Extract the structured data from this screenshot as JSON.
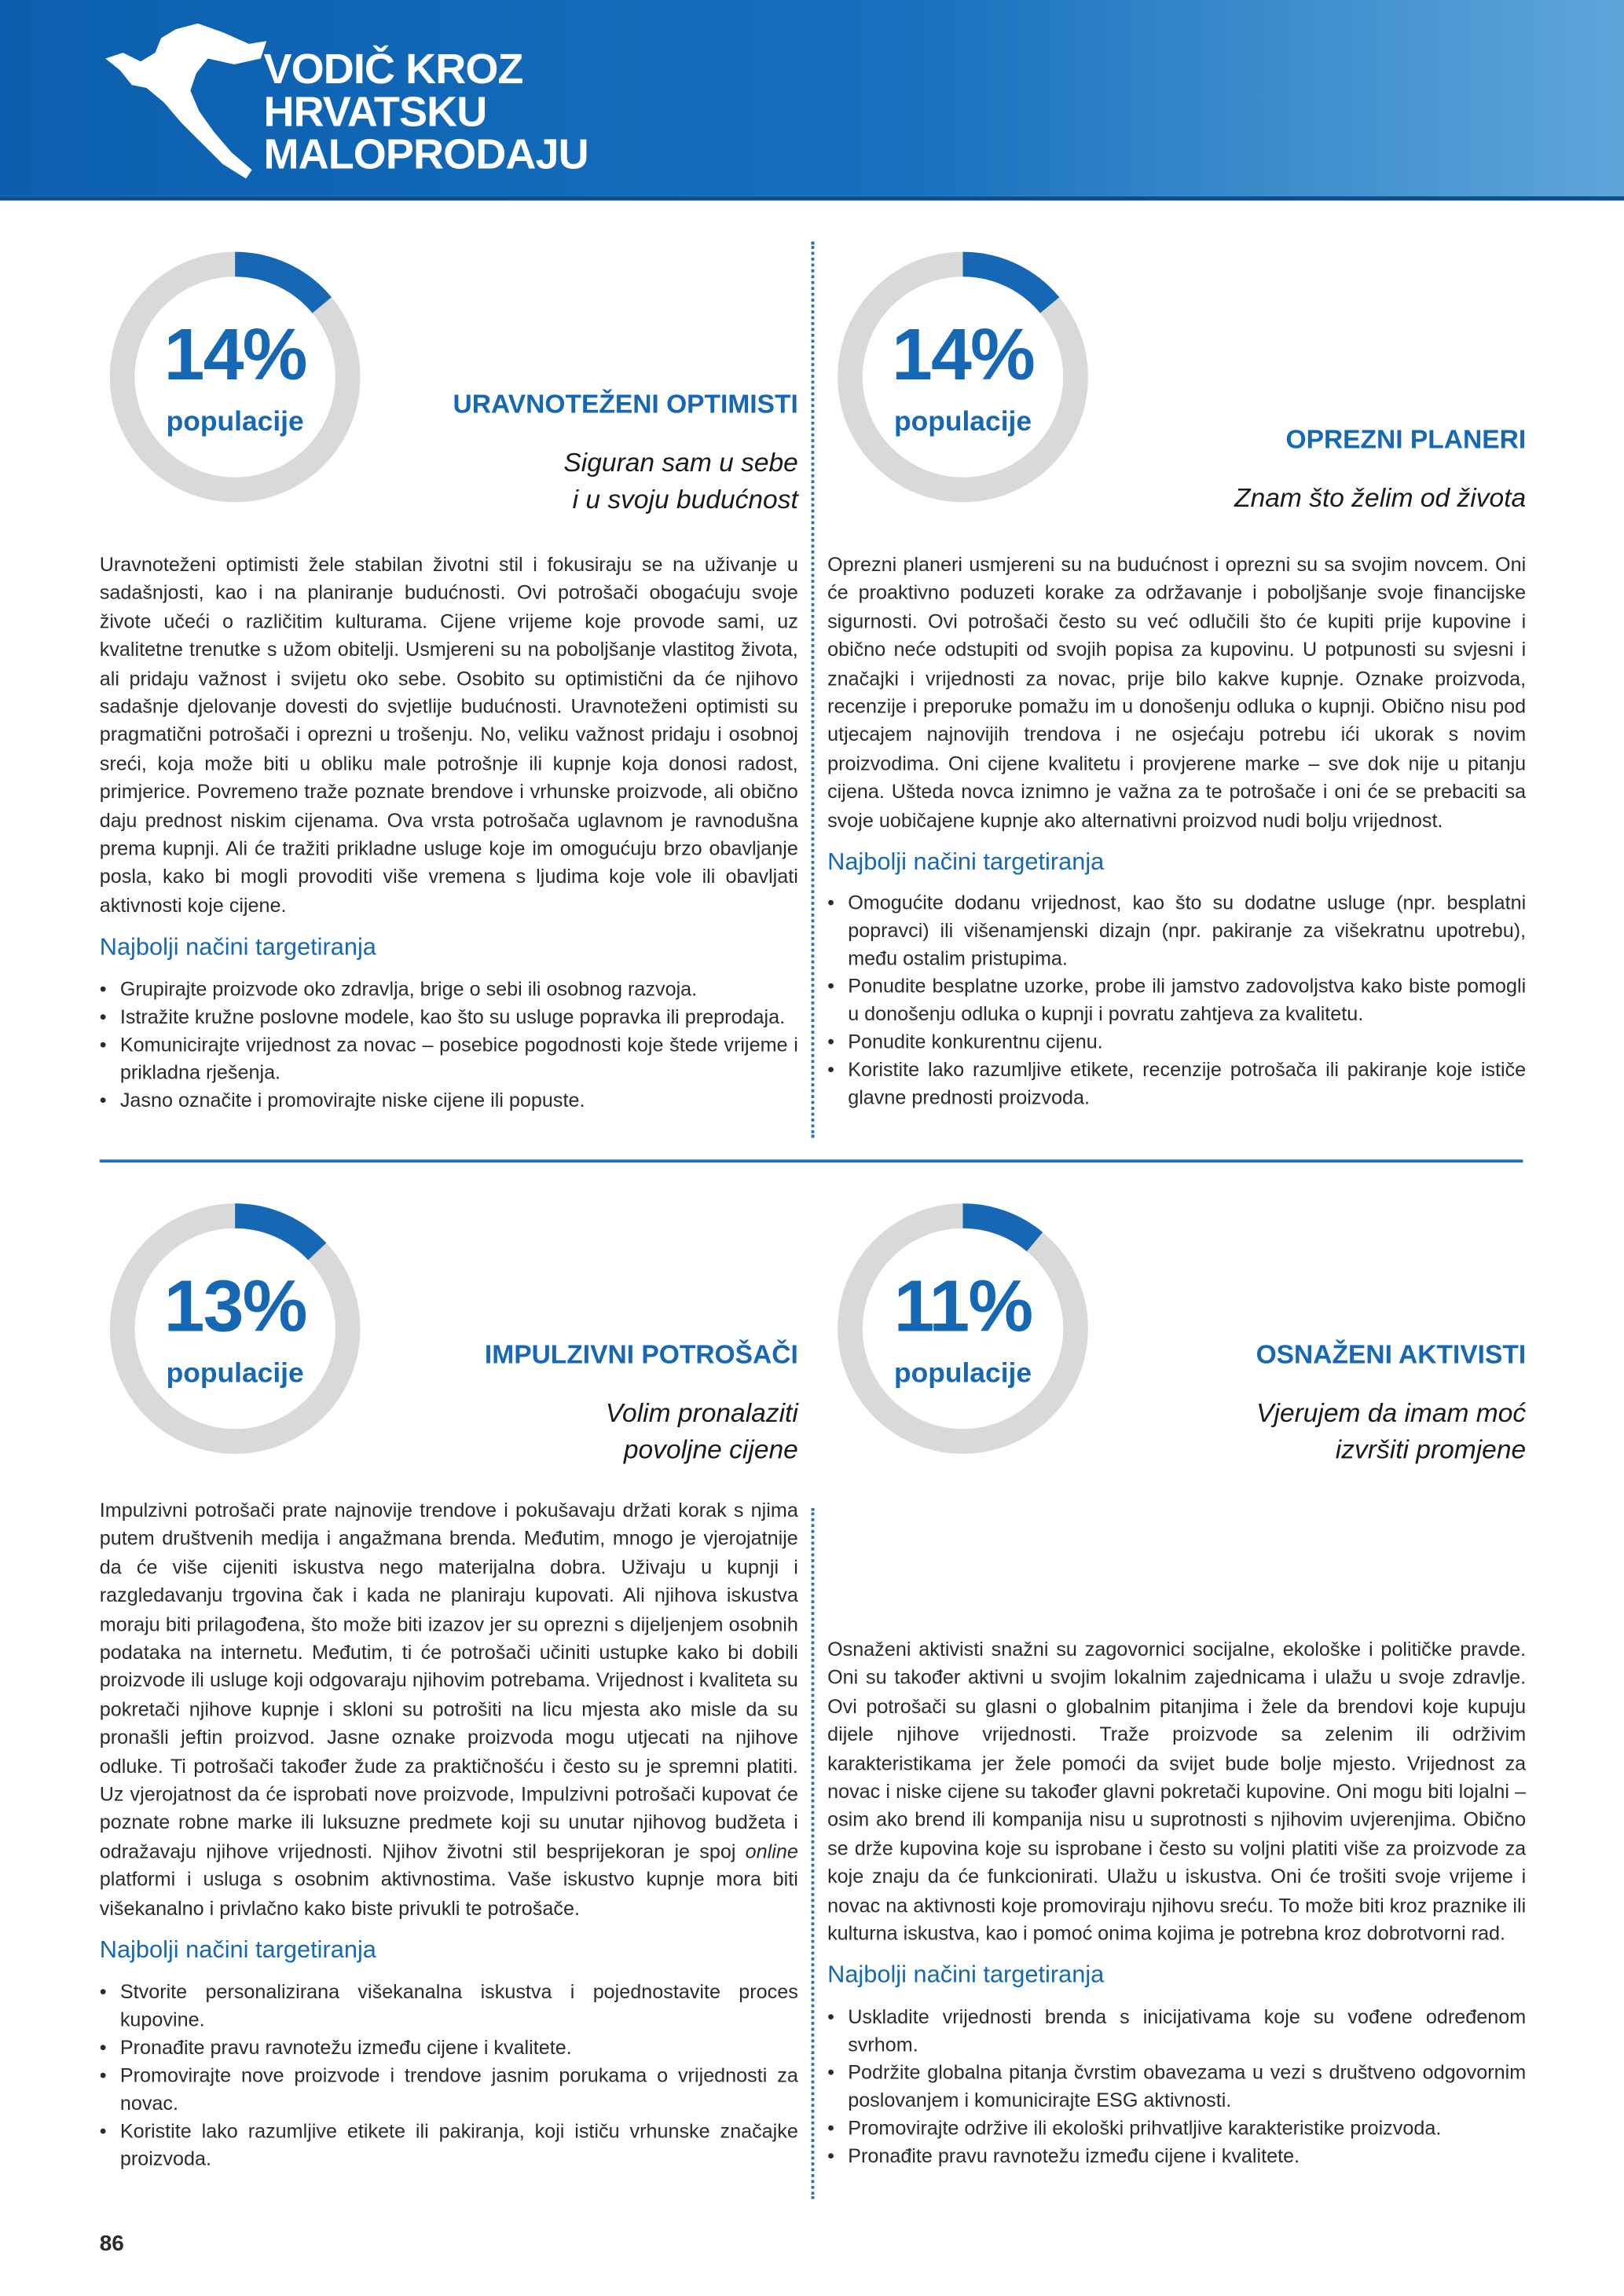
{
  "header": {
    "title_lines": [
      "VODIČ KROZ",
      "HRVATSKU",
      "MALOPRODAJU"
    ]
  },
  "sections": [
    {
      "share": {
        "value": 14,
        "label": "14%"
      },
      "share_caption": "populacije",
      "title": "URAVNOTEŽENI OPTIMISTI",
      "motto_lines": [
        "Siguran sam u sebe",
        "i u svoju budućnost"
      ],
      "body": [
        "Uravnoteženi optimisti žele stabilan životni stil i fokusiraju se na uživanje u sadašnjosti, kao i na planiranje budućnosti. Ovi potrošači obogaćuju svoje živote učeći o različitim kulturama. Cijene vrijeme koje provode sami, uz kvalitetne trenutke s užom obitelji. Usmjereni su na poboljšanje vlastitog života, ali pridaju važnost i svijetu oko sebe. Osobito su optimistični da će njihovo sadašnje djelovanje dovesti do svjetlije budućnosti. Uravnoteženi optimisti su pragmatični potrošači i oprezni u trošenju. No, veliku važnost pridaju i osobnoj sreći, koja može biti u obliku male potrošnje ili kupnje koja donosi radost, primjerice. Povremeno traže poznate brendove i vrhunske proizvode, ali obično daju prednost niskim cijenama. Ova vrsta potrošača uglavnom je ravnodušna prema kupnji. Ali će tražiti prikladne usluge koje im omogućuju brzo obavljanje posla, kako bi mogli provoditi više vremena s ljudima koje vole ili obavljati aktivnosti koje cijene."
      ],
      "tips_heading": "Najbolji načini targetiranja",
      "tips": [
        "Grupirajte proizvode oko zdravlja, brige o sebi ili osobnog razvoja.",
        "Istražite kružne poslovne modele, kao što su usluge popravka ili preprodaja.",
        "Komunicirajte vrijednost za novac – posebice pogodnosti koje štede vrijeme i prikladna rješenja.",
        "Jasno označite i promovirajte niske cijene ili popuste."
      ]
    },
    {
      "share": {
        "value": 14,
        "label": "14%"
      },
      "share_caption": "populacije",
      "title": "OPREZNI PLANERI",
      "motto_lines": [
        "Znam što želim od života"
      ],
      "body": [
        "Oprezni planeri usmjereni su na budućnost i oprezni su sa svojim novcem. Oni će proaktivno poduzeti korake za održavanje i poboljšanje svoje financijske sigurnosti. Ovi potrošači često su već odlučili što će kupiti prije kupovine i obično neće odstupiti od svojih popisa za kupovinu. U potpunosti su svjesni i značajki i vrijednosti za novac, prije bilo kakve kupnje. Oznake proizvoda, recenzije i preporuke pomažu im u donošenju odluka o kupnji. Obično nisu pod utjecajem najnovijih trendova i ne osjećaju potrebu ići ukorak s novim proizvodima. Oni cijene kvalitetu i provjerene marke – sve dok nije u pitanju cijena. Ušteda novca iznimno je važna za te potrošače i oni će se prebaciti sa svoje uobičajene kupnje ako alternativni proizvod nudi bolju vrijednost."
      ],
      "tips_heading": "Najbolji načini targetiranja",
      "tips": [
        "Omogućite dodanu vrijednost, kao što su dodatne usluge (npr. besplatni popravci) ili višenamjenski dizajn (npr. pakiranje za višekratnu upotrebu), među ostalim pristupima.",
        "Ponudite besplatne uzorke, probe ili jamstvo zadovoljstva kako biste pomogli u donošenju odluka o kupnji i povratu zahtjeva za kvalitetu.",
        "Ponudite konkurentnu cijenu.",
        "Koristite lako razumljive etikete, recenzije potrošača ili pakiranje koje ističe glavne prednosti proizvoda."
      ]
    },
    {
      "share": {
        "value": 13,
        "label": "13%"
      },
      "share_caption": "populacije",
      "title": "IMPULZIVNI POTROŠAČI",
      "motto_lines": [
        "Volim pronalaziti",
        "povoljne cijene"
      ],
      "body": [
        "Impulzivni potrošači prate najnovije trendove i pokušavaju držati korak s njima putem društvenih medija i angažmana brenda. Međutim, mnogo je vjerojatnije da će više cijeniti iskustva nego materijalna dobra. Uživaju u kupnji i razgledavanju trgovina čak i kada ne planiraju kupovati. Ali njihova iskustva moraju biti prilagođena, što može biti izazov jer su oprezni s dijeljenjem osobnih podataka na internetu. Međutim, ti će potrošači učiniti ustupke kako bi dobili proizvode ili usluge koji odgovaraju njihovim potrebama. Vrijednost i kvaliteta su pokretači njihove kupnje i skloni su potrošiti na licu mjesta ako misle da su pronašli jeftin proizvod. Jasne oznake proizvoda mogu utjecati na njihove odluke. Ti potrošači također žude za praktičnošću i često su je spremni platiti. Uz vjerojatnost da će isprobati nove proizvode, Impulzivni potrošači kupovat će poznate robne marke ili luksuzne predmete koji su unutar njihovog budžeta i odražavaju njihove vrijednosti. Njihov životni stil besprijekoran je spoj ",
        "online",
        " platformi i usluga s osobnim aktivnostima. Vaše iskustvo kupnje mora biti višekanalno i privlačno kako biste privukli te potrošače."
      ],
      "tips_heading": "Najbolji načini targetiranja",
      "tips": [
        "Stvorite personalizirana višekanalna iskustva i pojednostavite proces kupovine.",
        "Pronađite pravu ravnotežu između cijene i kvalitete.",
        "Promovirajte nove proizvode i trendove jasnim porukama o vrijednosti za novac.",
        "Koristite lako razumljive etikete ili pakiranja, koji ističu vrhunske značajke proizvoda."
      ]
    },
    {
      "share": {
        "value": 11,
        "label": "11%"
      },
      "share_caption": "populacije",
      "title": "OSNAŽENI AKTIVISTI",
      "motto_lines": [
        "Vjerujem da imam moć",
        "izvršiti promjene"
      ],
      "body": [
        "Osnaženi aktivisti snažni su zagovornici socijalne, ekološke i političke pravde. Oni su također aktivni u svojim lokalnim zajednicama i ulažu u svoje zdravlje. Ovi potrošači su glasni o globalnim pitanjima i žele da brendovi koje kupuju dijele njihove vrijednosti. Traže proizvode sa zelenim ili održivim karakteristikama jer žele pomoći da svijet bude bolje mjesto. Vrijednost za novac i niske cijene su također glavni pokretači kupovine. Oni mogu biti lojalni – osim ako brend ili kompanija nisu u suprotnosti s njihovim uvjerenjima. Obično se drže kupovina koje su isprobane i često su voljni platiti više za proizvode za koje znaju da će funkcionirati. Ulažu u iskustva. Oni će trošiti svoje vrijeme i novac na aktivnosti koje promoviraju njihovu sreću. To može biti kroz praznike ili kulturna iskustva, kao i pomoć onima kojima je potrebna kroz dobrotvorni rad."
      ],
      "tips_heading": "Najbolji načini targetiranja",
      "tips": [
        "Uskladite vrijednosti brenda s inicijativama koje su vođene određenom svrhom.",
        "Podržite globalna pitanja čvrstim obavezama u vezi s društveno odgovornim poslovanjem i komunicirajte ESG aktivnosti.",
        "Promovirajte održive ili ekološki prihvatljive karakteristike proizvoda.",
        "Pronađite pravu ravnotežu između cijene i kvalitete."
      ]
    }
  ],
  "page_number": 86
}
